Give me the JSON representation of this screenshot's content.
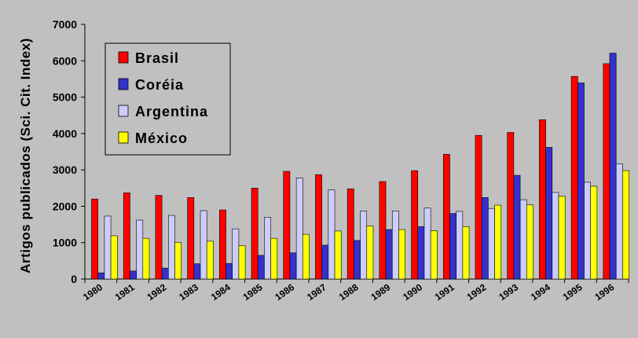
{
  "chart_data": {
    "type": "bar",
    "title": "",
    "xlabel": "",
    "ylabel": "Artigos publicados (Sci. Cit. Index)",
    "ylim": [
      0,
      7000
    ],
    "yticks": [
      0,
      1000,
      2000,
      3000,
      4000,
      5000,
      6000,
      7000
    ],
    "grid": false,
    "legend_position": "top-left",
    "categories": [
      "1980",
      "1981",
      "1982",
      "1983",
      "1984",
      "1985",
      "1986",
      "1987",
      "1988",
      "1989",
      "1990",
      "1991",
      "1992",
      "1993",
      "1994",
      "1995",
      "1996"
    ],
    "series": [
      {
        "name": "Brasil",
        "color": "#ff0000",
        "values": [
          2200,
          2370,
          2300,
          2240,
          1900,
          2500,
          2960,
          2870,
          2480,
          2680,
          2980,
          3430,
          3950,
          4030,
          4380,
          5570,
          5920
        ]
      },
      {
        "name": "Coréia",
        "color": "#3333cc",
        "values": [
          170,
          220,
          300,
          420,
          430,
          650,
          720,
          930,
          1060,
          1360,
          1440,
          1800,
          2240,
          2850,
          3620,
          5390,
          6210
        ]
      },
      {
        "name": "Argentina",
        "color": "#ccccff",
        "values": [
          1730,
          1620,
          1750,
          1880,
          1380,
          1700,
          2780,
          2450,
          1870,
          1870,
          1950,
          1860,
          1940,
          2180,
          2380,
          2660,
          3170
        ]
      },
      {
        "name": "México",
        "color": "#ffff00",
        "values": [
          1190,
          1120,
          1010,
          1040,
          920,
          1120,
          1230,
          1320,
          1460,
          1360,
          1330,
          1440,
          2030,
          2040,
          2280,
          2550,
          2980
        ]
      }
    ]
  }
}
